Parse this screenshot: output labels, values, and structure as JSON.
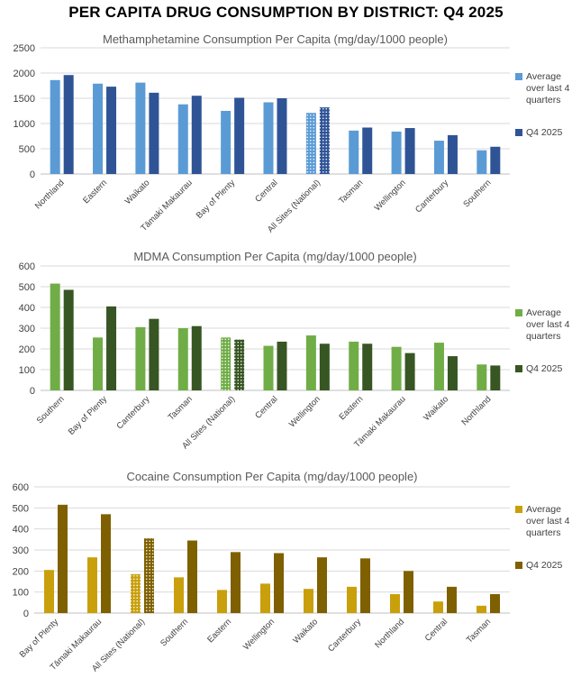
{
  "title": "PER CAPITA DRUG CONSUMPTION BY DISTRICT: Q4 2025",
  "chart_data": [
    {
      "type": "bar",
      "title": "Methamphetamine Consumption Per Capita (mg/day/1000 people)",
      "categories": [
        "Northland",
        "Eastern",
        "Waikato",
        "Tāmaki Makaurau",
        "Bay of Plenty",
        "Central",
        "All Sites (National)",
        "Tasman",
        "Wellington",
        "Canterbury",
        "Southern"
      ],
      "highlight_category": "All Sites (National)",
      "ylim": [
        0,
        2500
      ],
      "yticks": [
        0,
        500,
        1000,
        1500,
        2000,
        2500
      ],
      "series": [
        {
          "name": "Average over last 4 quarters",
          "color": "#5B9BD5",
          "values": [
            1860,
            1790,
            1810,
            1380,
            1250,
            1420,
            1210,
            860,
            840,
            660,
            470
          ]
        },
        {
          "name": "Q4 2025",
          "color": "#2F5496",
          "values": [
            1960,
            1730,
            1610,
            1550,
            1510,
            1500,
            1320,
            920,
            910,
            770,
            540
          ]
        }
      ],
      "legend_position": "right"
    },
    {
      "type": "bar",
      "title": "MDMA Consumption Per Capita (mg/day/1000 people)",
      "categories": [
        "Southern",
        "Bay of Plenty",
        "Canterbury",
        "Tasman",
        "All Sites (National)",
        "Central",
        "Wellington",
        "Eastern",
        "Tāmaki Makaurau",
        "Waikato",
        "Northland"
      ],
      "highlight_category": "All Sites (National)",
      "ylim": [
        0,
        600
      ],
      "yticks": [
        0,
        100,
        200,
        300,
        400,
        500,
        600
      ],
      "series": [
        {
          "name": "Average over last 4 quarters",
          "color": "#70AD47",
          "values": [
            515,
            255,
            305,
            300,
            255,
            215,
            265,
            235,
            210,
            230,
            125
          ]
        },
        {
          "name": "Q4 2025",
          "color": "#375623",
          "values": [
            485,
            405,
            345,
            310,
            245,
            235,
            225,
            225,
            180,
            165,
            120
          ]
        }
      ],
      "legend_position": "right"
    },
    {
      "type": "bar",
      "title": "Cocaine Consumption Per Capita (mg/day/1000 people)",
      "categories": [
        "Bay of Plenty",
        "Tāmaki Makaurau",
        "All Sites (National)",
        "Southern",
        "Eastern",
        "Wellington",
        "Waikato",
        "Canterbury",
        "Northland",
        "Central",
        "Tasman"
      ],
      "highlight_category": "All Sites (National)",
      "ylim": [
        0,
        600
      ],
      "yticks": [
        0,
        100,
        200,
        300,
        400,
        500,
        600
      ],
      "series": [
        {
          "name": "Average over last 4 quarters",
          "color": "#C9A00C",
          "values": [
            205,
            265,
            185,
            170,
            110,
            140,
            115,
            125,
            90,
            55,
            35
          ]
        },
        {
          "name": "Q4 2025",
          "color": "#7F6000",
          "values": [
            515,
            470,
            355,
            345,
            290,
            285,
            265,
            260,
            200,
            125,
            90
          ]
        }
      ],
      "legend_position": "right"
    }
  ]
}
